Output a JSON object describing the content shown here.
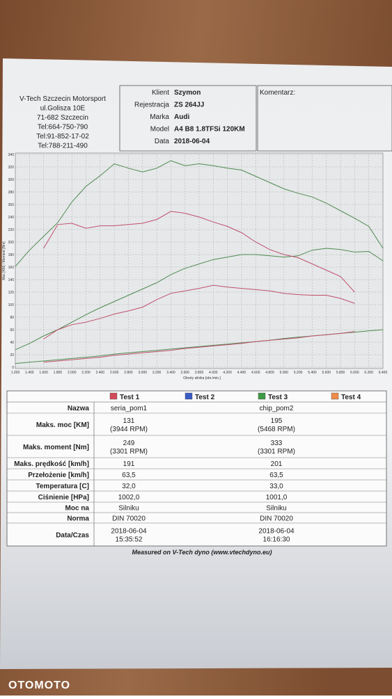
{
  "company": [
    "V-Tech Szczecin Motorsport",
    "ul.Golisza 10E",
    "71-682 Szczecin",
    "Tel:664-750-790",
    "Tel:91-852-17-02",
    "Tel:788-211-490"
  ],
  "vehicle": [
    {
      "label": "Klient",
      "value": "Szymon"
    },
    {
      "label": "Rejestracja",
      "value": "ZS 264JJ"
    },
    {
      "label": "Marka",
      "value": "Audi"
    },
    {
      "label": "Model",
      "value": "A4 B8 1.8TFSi 120KM"
    },
    {
      "label": "Data",
      "value": "2018-06-04"
    }
  ],
  "comment_label": "Komentarz:",
  "chart_data": {
    "type": "line",
    "x_label": "Obroty silnika [obr./min.]",
    "y_label": "Moc [KM] / Moment [Nm]",
    "x": [
      1200,
      1400,
      1600,
      1800,
      2000,
      2200,
      2400,
      2600,
      2800,
      3000,
      3200,
      3400,
      3600,
      3800,
      4000,
      4200,
      4400,
      4600,
      4800,
      5000,
      5200,
      5400,
      5600,
      5800,
      6000,
      6200,
      6400
    ],
    "xlim": [
      1200,
      6400
    ],
    "ylim": [
      0,
      340
    ],
    "grid": true,
    "xticks": [
      {
        "value": 1200,
        "label": "1.200"
      },
      {
        "value": 1400,
        "label": "1.400"
      },
      {
        "value": 1600,
        "label": "1.600"
      },
      {
        "value": 1800,
        "label": "1.800"
      },
      {
        "value": 2000,
        "label": "2.000"
      },
      {
        "value": 2200,
        "label": "2.200"
      },
      {
        "value": 2400,
        "label": "2.400"
      },
      {
        "value": 2600,
        "label": "2.600"
      },
      {
        "value": 2800,
        "label": "2.800"
      },
      {
        "value": 3000,
        "label": "3.000"
      },
      {
        "value": 3200,
        "label": "3.200"
      },
      {
        "value": 3400,
        "label": "3.400"
      },
      {
        "value": 3600,
        "label": "3.600"
      },
      {
        "value": 3800,
        "label": "3.800"
      },
      {
        "value": 4000,
        "label": "4.000"
      },
      {
        "value": 4200,
        "label": "4.200"
      },
      {
        "value": 4400,
        "label": "4.400"
      },
      {
        "value": 4600,
        "label": "4.600"
      },
      {
        "value": 4800,
        "label": "4.800"
      },
      {
        "value": 5000,
        "label": "5.000"
      },
      {
        "value": 5200,
        "label": "5.200"
      },
      {
        "value": 5400,
        "label": "5.400"
      },
      {
        "value": 5600,
        "label": "5.600"
      },
      {
        "value": 5800,
        "label": "5.800"
      },
      {
        "value": 6000,
        "label": "6.000"
      },
      {
        "value": 6200,
        "label": "6.200"
      },
      {
        "value": 6400,
        "label": "6.400"
      }
    ],
    "yticks": [
      0,
      20,
      40,
      60,
      80,
      100,
      120,
      140,
      160,
      180,
      200,
      220,
      240,
      260,
      280,
      300,
      320,
      340
    ],
    "series": [
      {
        "color": "#4f8a4f",
        "values": [
          161,
          187,
          209,
          231,
          264,
          289,
          306,
          325,
          318,
          312,
          318,
          330,
          322,
          325,
          322,
          318,
          315,
          305,
          295,
          285,
          278,
          272,
          262,
          250,
          238,
          225,
          190
        ]
      },
      {
        "color": "#4f8a4f",
        "values": [
          28,
          38,
          50,
          60,
          72,
          84,
          95,
          105,
          115,
          125,
          135,
          148,
          158,
          165,
          172,
          176,
          180,
          180,
          178,
          176,
          178,
          187,
          190,
          188,
          184,
          185,
          170
        ]
      },
      {
        "color": "#4f8a4f",
        "values": [
          6,
          8,
          10,
          12,
          14,
          16,
          18,
          21,
          23,
          25,
          27,
          29,
          31,
          33,
          35,
          37,
          39,
          41,
          43,
          46,
          48,
          50,
          52,
          54,
          56,
          58,
          60
        ]
      },
      {
        "color": "#c0506a",
        "values": [
          null,
          null,
          190,
          228,
          230,
          222,
          226,
          226,
          228,
          230,
          236,
          249,
          246,
          240,
          232,
          225,
          215,
          200,
          188,
          180,
          175,
          165,
          155,
          145,
          120,
          null,
          null
        ]
      },
      {
        "color": "#c0506a",
        "values": [
          null,
          null,
          45,
          60,
          68,
          72,
          78,
          85,
          90,
          96,
          108,
          118,
          122,
          126,
          131,
          128,
          126,
          124,
          122,
          118,
          116,
          115,
          115,
          110,
          102,
          null,
          null
        ]
      },
      {
        "color": "#c0506a",
        "values": [
          null,
          null,
          8,
          10,
          12,
          14,
          16,
          19,
          21,
          23,
          25,
          27,
          30,
          32,
          34,
          36,
          38,
          41,
          43,
          45,
          47,
          50,
          52,
          54,
          57,
          null,
          null
        ]
      }
    ]
  },
  "table": {
    "headers": [
      {
        "name": "Test 1",
        "color": "#d24a5a"
      },
      {
        "name": "Test 2",
        "color": "#3a5cc4"
      },
      {
        "name": "Test 3",
        "color": "#3f9a46"
      },
      {
        "name": "Test 4",
        "color": "#ef8a4a"
      }
    ],
    "rows": [
      {
        "label": "Nazwa",
        "cells": [
          [
            "seria_pom1"
          ],
          [
            "chip_pom2"
          ]
        ]
      },
      {
        "label": "Maks. moc [KM]",
        "cells": [
          [
            "131",
            "(3944 RPM)"
          ],
          [
            "195",
            "(5468 RPM)"
          ]
        ]
      },
      {
        "label": "Maks. moment [Nm]",
        "cells": [
          [
            "249",
            "(3301 RPM)"
          ],
          [
            "333",
            "(3301 RPM)"
          ]
        ]
      },
      {
        "label": "Maks. prędkość [km/h]",
        "cells": [
          [
            "191"
          ],
          [
            "201"
          ]
        ]
      },
      {
        "label": "Przełożenie [km/h]",
        "cells": [
          [
            "63,5"
          ],
          [
            "63,5"
          ]
        ]
      },
      {
        "label": "Temperatura [C]",
        "cells": [
          [
            "32,0"
          ],
          [
            "33,0"
          ]
        ]
      },
      {
        "label": "Ciśnienie [HPa]",
        "cells": [
          [
            "1002,0"
          ],
          [
            "1001,0"
          ]
        ]
      },
      {
        "label": "Moc na",
        "cells": [
          [
            "Silniku"
          ],
          [
            "Silniku"
          ]
        ]
      },
      {
        "label": "Norma",
        "cells": [
          [
            "DIN 70020"
          ],
          [
            "DIN 70020"
          ]
        ]
      },
      {
        "label": "Data/Czas",
        "cells": [
          [
            "2018-06-04",
            "15:35:52"
          ],
          [
            "2018-06-04",
            "16:16:30"
          ]
        ]
      }
    ]
  },
  "footer": "Measured on V-Tech dyno (www.vtechdyno.eu)",
  "watermark": "OTOMOTO"
}
